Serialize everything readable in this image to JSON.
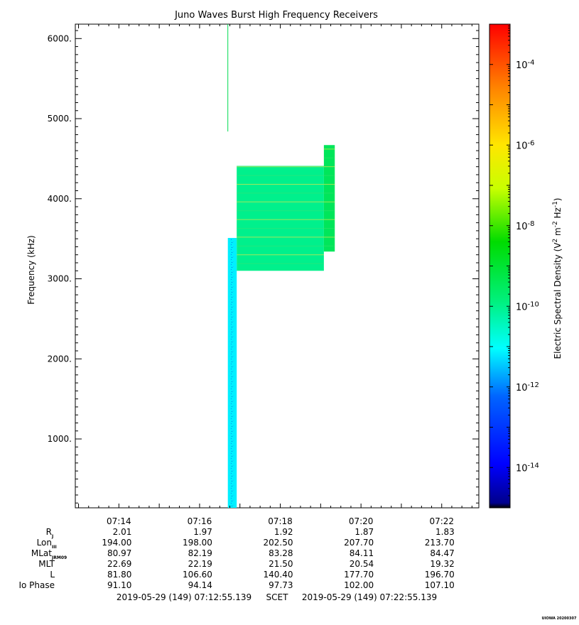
{
  "chart_data": {
    "type": "heatmap",
    "title": "Juno Waves Burst High Frequency Receivers",
    "ylabel": "Frequency (kHz)",
    "xlim_minutes": [
      12.92,
      22.92
    ],
    "ylim": [
      140,
      6180
    ],
    "y_ticks": [
      {
        "value": 1000,
        "label": "1000."
      },
      {
        "value": 2000,
        "label": "2000."
      },
      {
        "value": 3000,
        "label": "3000."
      },
      {
        "value": 4000,
        "label": "4000."
      },
      {
        "value": 5000,
        "label": "5000."
      },
      {
        "value": 6000,
        "label": "6000."
      }
    ],
    "x_ticks": [
      {
        "minute": 14,
        "label": "07:14"
      },
      {
        "minute": 16,
        "label": "07:16"
      },
      {
        "minute": 18,
        "label": "07:18"
      },
      {
        "minute": 20,
        "label": "07:20"
      },
      {
        "minute": 22,
        "label": "07:22"
      }
    ],
    "colorbar": {
      "label": "Electric Spectral Density (V² m⁻² Hz⁻¹)",
      "label_parts": {
        "main": "Electric Spectral Density (V",
        "sup1": "2",
        "mid": " m",
        "sup2": "-2",
        "mid2": " Hz",
        "sup3": "-1",
        "end": ")"
      },
      "log_min": -15,
      "log_max": -3,
      "ticks": [
        {
          "exponent": -14,
          "base": "10",
          "exp_label": "-14"
        },
        {
          "exponent": -12,
          "base": "10",
          "exp_label": "-12"
        },
        {
          "exponent": -10,
          "base": "10",
          "exp_label": "-10"
        },
        {
          "exponent": -8,
          "base": "10",
          "exp_label": "-8"
        },
        {
          "exponent": -6,
          "base": "10",
          "exp_label": "-6"
        },
        {
          "exponent": -4,
          "base": "10",
          "exp_label": "-4"
        }
      ]
    },
    "spectral_blocks": [
      {
        "t_start": 16.7,
        "t_end": 16.92,
        "f_start": 140,
        "f_end": 3510,
        "log_density": -11.7,
        "color": "#00f0ff"
      },
      {
        "t_start": 16.92,
        "t_end": 19.08,
        "f_start": 3100,
        "f_end": 4410,
        "log_density": -10.8,
        "color": "#00f08c"
      },
      {
        "t_start": 19.08,
        "t_end": 19.35,
        "f_start": 3340,
        "f_end": 4670,
        "log_density": -10.5,
        "color": "#00e65a"
      }
    ],
    "spikes": [
      {
        "t": 16.7,
        "f_start": 4840,
        "f_end": 6180,
        "color": "#00dc50"
      }
    ],
    "ephemeris": {
      "rows": [
        {
          "label": "R",
          "sub": "J",
          "values": [
            "2.01",
            "1.97",
            "1.92",
            "1.87",
            "1.83"
          ]
        },
        {
          "label": "Lon",
          "sub": "III",
          "values": [
            "194.00",
            "198.00",
            "202.50",
            "207.70",
            "213.70"
          ]
        },
        {
          "label": "MLat",
          "sub": "JRM09",
          "values": [
            "80.97",
            "82.19",
            "83.28",
            "84.11",
            "84.47"
          ]
        },
        {
          "label": "MLT",
          "sub": "",
          "values": [
            "22.69",
            "22.19",
            "21.50",
            "20.54",
            "19.32"
          ]
        },
        {
          "label": "L",
          "sub": "",
          "values": [
            "81.80",
            "106.60",
            "140.40",
            "177.70",
            "196.70"
          ]
        },
        {
          "label": "Io Phase",
          "sub": "",
          "values": [
            "91.10",
            "94.14",
            "97.73",
            "102.00",
            "107.10"
          ]
        }
      ]
    },
    "time_range": {
      "start": "2019-05-29 (149) 07:12:55.139",
      "scale": "SCET",
      "end": "2019-05-29 (149) 07:22:55.139"
    },
    "footer_tag": "UIOWA 20200307"
  }
}
